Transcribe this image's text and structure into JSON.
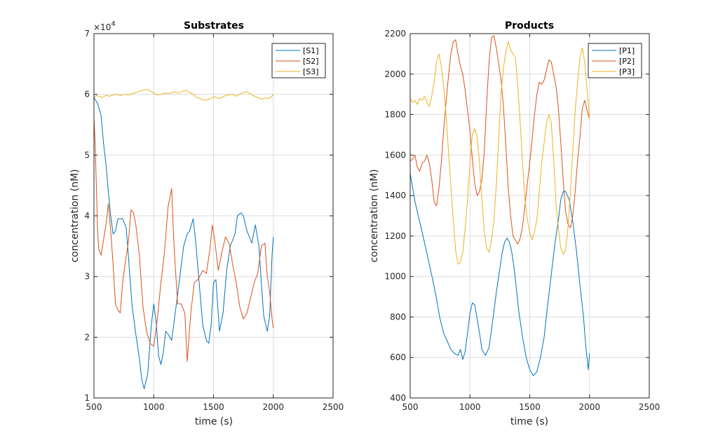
{
  "chart_data": [
    {
      "type": "line",
      "title": "Substrates",
      "xlabel": "time (s)",
      "ylabel": "concentration (nM)",
      "xlim": [
        500,
        2500
      ],
      "ylim": [
        10000,
        70000
      ],
      "xticks": [
        500,
        1000,
        1500,
        2000,
        2500
      ],
      "yticks": [
        10000,
        20000,
        30000,
        40000,
        50000,
        60000,
        70000
      ],
      "ytick_labels": [
        "1",
        "2",
        "3",
        "4",
        "5",
        "6",
        "7"
      ],
      "yexponent_base": "×10",
      "yexponent_power": "4",
      "grid": true,
      "legend": "top-right",
      "series": [
        {
          "name": "[S1]",
          "color": "#0072bd",
          "x": [
            500,
            530,
            560,
            580,
            600,
            620,
            640,
            660,
            680,
            700,
            740,
            770,
            790,
            800,
            820,
            850,
            880,
            900,
            920,
            950,
            980,
            1000,
            1020,
            1040,
            1060,
            1080,
            1100,
            1120,
            1150,
            1200,
            1250,
            1280,
            1300,
            1330,
            1350,
            1380,
            1410,
            1440,
            1460,
            1480,
            1500,
            1520,
            1550,
            1580,
            1610,
            1640,
            1680,
            1700,
            1730,
            1750,
            1780,
            1820,
            1850,
            1880,
            1900,
            1920,
            1950,
            1970,
            1990,
            2000
          ],
          "y": [
            59500,
            58500,
            56500,
            52000,
            48500,
            44000,
            40000,
            37000,
            37500,
            39500,
            39500,
            38000,
            33000,
            30000,
            25000,
            20500,
            16500,
            13000,
            11500,
            14000,
            22000,
            25500,
            22500,
            17000,
            15500,
            17500,
            21000,
            20500,
            19500,
            27000,
            35000,
            37000,
            37500,
            39500,
            36000,
            29000,
            22000,
            19500,
            19000,
            22000,
            29000,
            29500,
            21000,
            24000,
            31000,
            35000,
            37000,
            40000,
            40500,
            40000,
            37500,
            35500,
            38500,
            35000,
            29000,
            23500,
            21000,
            23500,
            33500,
            36500
          ]
        },
        {
          "name": "[S2]",
          "color": "#d95319",
          "x": [
            500,
            510,
            520,
            530,
            540,
            560,
            580,
            600,
            620,
            640,
            660,
            680,
            700,
            720,
            740,
            760,
            790,
            810,
            830,
            850,
            880,
            910,
            940,
            970,
            1000,
            1030,
            1060,
            1090,
            1120,
            1150,
            1170,
            1200,
            1230,
            1260,
            1280,
            1310,
            1340,
            1370,
            1410,
            1440,
            1470,
            1490,
            1510,
            1540,
            1570,
            1600,
            1630,
            1660,
            1690,
            1720,
            1750,
            1780,
            1810,
            1840,
            1870,
            1900,
            1930,
            1950,
            1970,
            1990,
            2000
          ],
          "y": [
            56000,
            52000,
            45000,
            38000,
            34500,
            33500,
            36000,
            38500,
            42000,
            37500,
            32000,
            25500,
            24500,
            24000,
            29000,
            32000,
            36000,
            41000,
            40500,
            38500,
            33500,
            25000,
            21000,
            19000,
            18500,
            23000,
            29000,
            34000,
            41500,
            44500,
            35000,
            25500,
            25500,
            24000,
            16000,
            24000,
            29000,
            29500,
            31000,
            30500,
            34500,
            38500,
            36000,
            31000,
            34000,
            36500,
            35500,
            32000,
            29000,
            25000,
            23000,
            24000,
            26500,
            29000,
            30500,
            35000,
            35500,
            30000,
            27500,
            23000,
            21500
          ]
        },
        {
          "name": "[S3]",
          "color": "#edb120",
          "x": [
            500,
            520,
            540,
            560,
            580,
            600,
            630,
            660,
            690,
            720,
            760,
            790,
            820,
            850,
            880,
            910,
            940,
            970,
            1000,
            1030,
            1060,
            1090,
            1120,
            1150,
            1180,
            1210,
            1240,
            1270,
            1300,
            1330,
            1360,
            1390,
            1420,
            1450,
            1480,
            1510,
            1540,
            1570,
            1600,
            1630,
            1660,
            1690,
            1720,
            1750,
            1780,
            1810,
            1840,
            1870,
            1900,
            1930,
            1960,
            1990,
            2000
          ],
          "y": [
            59500,
            59800,
            59700,
            59500,
            59600,
            59800,
            59700,
            59900,
            60000,
            59800,
            60000,
            59900,
            60100,
            60300,
            60500,
            60700,
            60800,
            60600,
            60200,
            59900,
            60000,
            60200,
            60100,
            60300,
            60400,
            60200,
            60500,
            60700,
            60300,
            60000,
            59500,
            59300,
            59000,
            59100,
            59400,
            59600,
            59300,
            59500,
            59800,
            59900,
            60000,
            59700,
            60000,
            60300,
            60400,
            60100,
            59700,
            59500,
            59200,
            59400,
            59300,
            59700,
            60000
          ]
        }
      ]
    },
    {
      "type": "line",
      "title": "Products",
      "xlabel": "time (s)",
      "ylabel": "concentration (nM)",
      "xlim": [
        500,
        2500
      ],
      "ylim": [
        400,
        2200
      ],
      "xticks": [
        500,
        1000,
        1500,
        2000,
        2500
      ],
      "yticks": [
        400,
        600,
        800,
        1000,
        1200,
        1400,
        1600,
        1800,
        2000,
        2200
      ],
      "ytick_labels": [
        "400",
        "600",
        "800",
        "1000",
        "1200",
        "1400",
        "1600",
        "1800",
        "2000",
        "2200"
      ],
      "grid": true,
      "legend": "top-right",
      "series": [
        {
          "name": "[P1]",
          "color": "#0072bd",
          "x": [
            500,
            520,
            540,
            560,
            580,
            600,
            630,
            660,
            690,
            720,
            750,
            780,
            810,
            840,
            870,
            900,
            920,
            940,
            960,
            980,
            1000,
            1020,
            1040,
            1060,
            1080,
            1100,
            1130,
            1160,
            1190,
            1220,
            1250,
            1270,
            1290,
            1310,
            1330,
            1350,
            1370,
            1390,
            1410,
            1440,
            1470,
            1500,
            1530,
            1560,
            1590,
            1620,
            1650,
            1680,
            1710,
            1740,
            1760,
            1780,
            1800,
            1830,
            1860,
            1890,
            1920,
            1950,
            1970,
            1990,
            2000
          ],
          "y": [
            1510,
            1440,
            1370,
            1320,
            1270,
            1220,
            1140,
            1060,
            980,
            890,
            790,
            720,
            680,
            640,
            620,
            610,
            640,
            590,
            630,
            720,
            820,
            870,
            860,
            790,
            720,
            640,
            610,
            650,
            780,
            920,
            1040,
            1120,
            1170,
            1190,
            1170,
            1120,
            1040,
            930,
            820,
            700,
            600,
            540,
            510,
            530,
            600,
            700,
            860,
            1010,
            1160,
            1280,
            1380,
            1420,
            1420,
            1380,
            1270,
            1130,
            960,
            800,
            650,
            540,
            620
          ]
        },
        {
          "name": "[P2]",
          "color": "#d95319",
          "x": [
            500,
            520,
            540,
            560,
            580,
            600,
            620,
            640,
            660,
            680,
            700,
            720,
            740,
            760,
            780,
            800,
            820,
            840,
            860,
            880,
            900,
            920,
            940,
            960,
            980,
            1000,
            1020,
            1040,
            1060,
            1080,
            1100,
            1120,
            1140,
            1160,
            1180,
            1200,
            1220,
            1240,
            1260,
            1280,
            1300,
            1320,
            1340,
            1360,
            1380,
            1400,
            1420,
            1440,
            1460,
            1480,
            1500,
            1520,
            1540,
            1560,
            1580,
            1600,
            1620,
            1640,
            1660,
            1680,
            1700,
            1720,
            1740,
            1760,
            1780,
            1800,
            1820,
            1840,
            1860,
            1880,
            1900,
            1920,
            1940,
            1960,
            1980,
            2000
          ],
          "y": [
            1570,
            1580,
            1600,
            1540,
            1520,
            1560,
            1570,
            1600,
            1560,
            1480,
            1370,
            1350,
            1430,
            1560,
            1720,
            1860,
            1990,
            2100,
            2160,
            2170,
            2100,
            2040,
            2000,
            1920,
            1820,
            1720,
            1580,
            1460,
            1400,
            1420,
            1480,
            1620,
            1860,
            2060,
            2180,
            2190,
            2130,
            2050,
            1970,
            1840,
            1650,
            1440,
            1300,
            1200,
            1180,
            1160,
            1190,
            1250,
            1350,
            1460,
            1560,
            1680,
            1800,
            1900,
            1960,
            1950,
            1970,
            2020,
            2070,
            2060,
            2000,
            1940,
            1830,
            1660,
            1480,
            1320,
            1260,
            1240,
            1300,
            1420,
            1570,
            1690,
            1830,
            1870,
            1820,
            1780
          ]
        },
        {
          "name": "[P3]",
          "color": "#edb120",
          "x": [
            500,
            520,
            540,
            560,
            580,
            600,
            620,
            640,
            660,
            680,
            700,
            720,
            740,
            760,
            780,
            800,
            820,
            840,
            860,
            880,
            900,
            920,
            940,
            960,
            980,
            1000,
            1020,
            1040,
            1060,
            1080,
            1100,
            1120,
            1140,
            1160,
            1180,
            1200,
            1220,
            1240,
            1260,
            1280,
            1300,
            1320,
            1340,
            1360,
            1380,
            1400,
            1420,
            1440,
            1460,
            1480,
            1500,
            1520,
            1540,
            1560,
            1580,
            1600,
            1620,
            1640,
            1660,
            1680,
            1700,
            1720,
            1740,
            1760,
            1780,
            1800,
            1820,
            1840,
            1860,
            1880,
            1900,
            1920,
            1940,
            1960,
            1980,
            2000
          ],
          "y": [
            1880,
            1860,
            1870,
            1850,
            1880,
            1870,
            1890,
            1860,
            1840,
            1890,
            1960,
            2060,
            2100,
            2040,
            1940,
            1800,
            1620,
            1450,
            1280,
            1130,
            1060,
            1070,
            1120,
            1240,
            1380,
            1560,
            1700,
            1730,
            1690,
            1560,
            1380,
            1220,
            1140,
            1120,
            1180,
            1280,
            1450,
            1680,
            1910,
            2030,
            2110,
            2160,
            2120,
            2100,
            2080,
            1940,
            1760,
            1560,
            1380,
            1280,
            1220,
            1180,
            1220,
            1280,
            1420,
            1560,
            1660,
            1760,
            1800,
            1760,
            1580,
            1360,
            1240,
            1140,
            1110,
            1130,
            1240,
            1420,
            1620,
            1820,
            1960,
            2080,
            2130,
            2060,
            1920,
            1780
          ]
        }
      ]
    }
  ]
}
